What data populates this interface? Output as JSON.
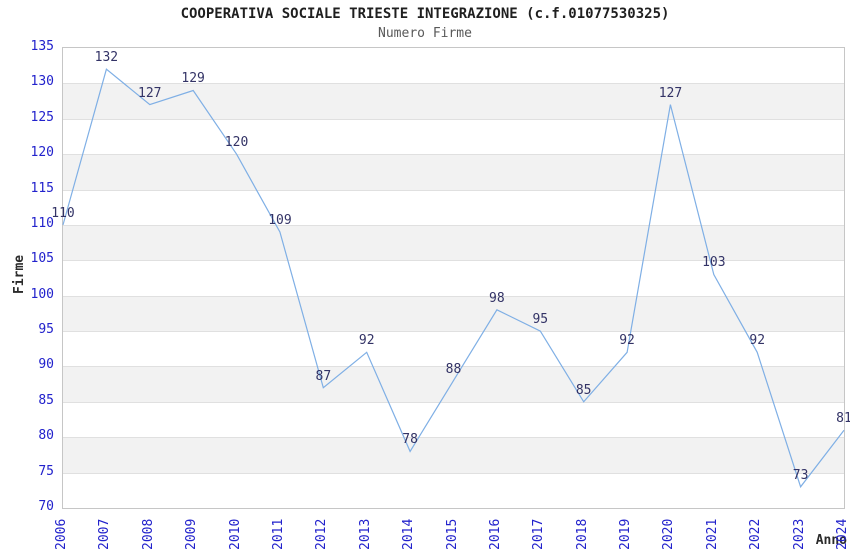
{
  "chart_data": {
    "type": "line",
    "title": "COOPERATIVA SOCIALE TRIESTE INTEGRAZIONE (c.f.01077530325)",
    "subtitle": "Numero Firme",
    "xlabel": "Anno",
    "ylabel": "Firme",
    "categories": [
      "2006",
      "2007",
      "2008",
      "2009",
      "2010",
      "2011",
      "2012",
      "2013",
      "2014",
      "2015",
      "2016",
      "2017",
      "2018",
      "2019",
      "2020",
      "2021",
      "2022",
      "2023",
      "2024"
    ],
    "values": [
      110,
      132,
      127,
      129,
      120,
      109,
      87,
      92,
      78,
      88,
      98,
      95,
      85,
      92,
      127,
      103,
      92,
      73,
      81
    ],
    "ylim": [
      70,
      135
    ],
    "ytick_step": 5,
    "grid": true,
    "legend_position": "none",
    "data_labels": true,
    "colors": {
      "line": "#7fafe5",
      "tick_label": "#2222cc",
      "data_label": "#333366",
      "band_gray": "#f2f2f2",
      "band_white": "#ffffff",
      "gridline": "#e0e0e0",
      "plot_border": "#c6c6c6",
      "title": "#1f1f1f",
      "subtitle": "#595959"
    }
  }
}
